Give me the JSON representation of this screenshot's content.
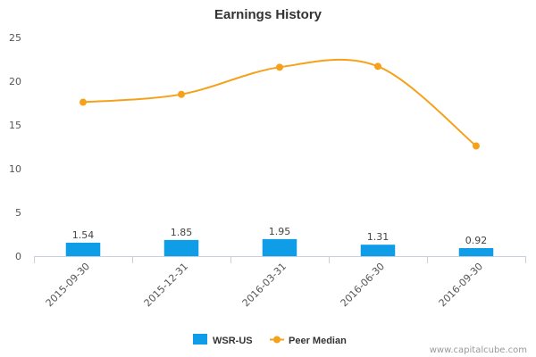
{
  "chart_data": {
    "type": "bar",
    "title": "Earnings History",
    "xlabel": "",
    "ylabel": "",
    "ylim": [
      0,
      25
    ],
    "yticks": [
      "0",
      "5",
      "10",
      "15",
      "20",
      "25"
    ],
    "grid": false,
    "legend": "bottom-center",
    "categories": [
      "2015-09-30",
      "2015-12-31",
      "2016-03-31",
      "2016-06-30",
      "2016-09-30"
    ],
    "series": [
      {
        "name": "WSR-US",
        "type": "bar",
        "color": "#0f9de8",
        "values": [
          1.54,
          1.85,
          1.95,
          1.31,
          0.92
        ],
        "labels": [
          "1.54",
          "1.85",
          "1.95",
          "1.31",
          "0.92"
        ]
      },
      {
        "name": "Peer Median",
        "type": "line",
        "color": "#f5a11a",
        "values": [
          17.6,
          18.5,
          21.6,
          21.7,
          12.6
        ]
      }
    ]
  },
  "footer": {
    "credit": "www.capitalcube.com"
  }
}
